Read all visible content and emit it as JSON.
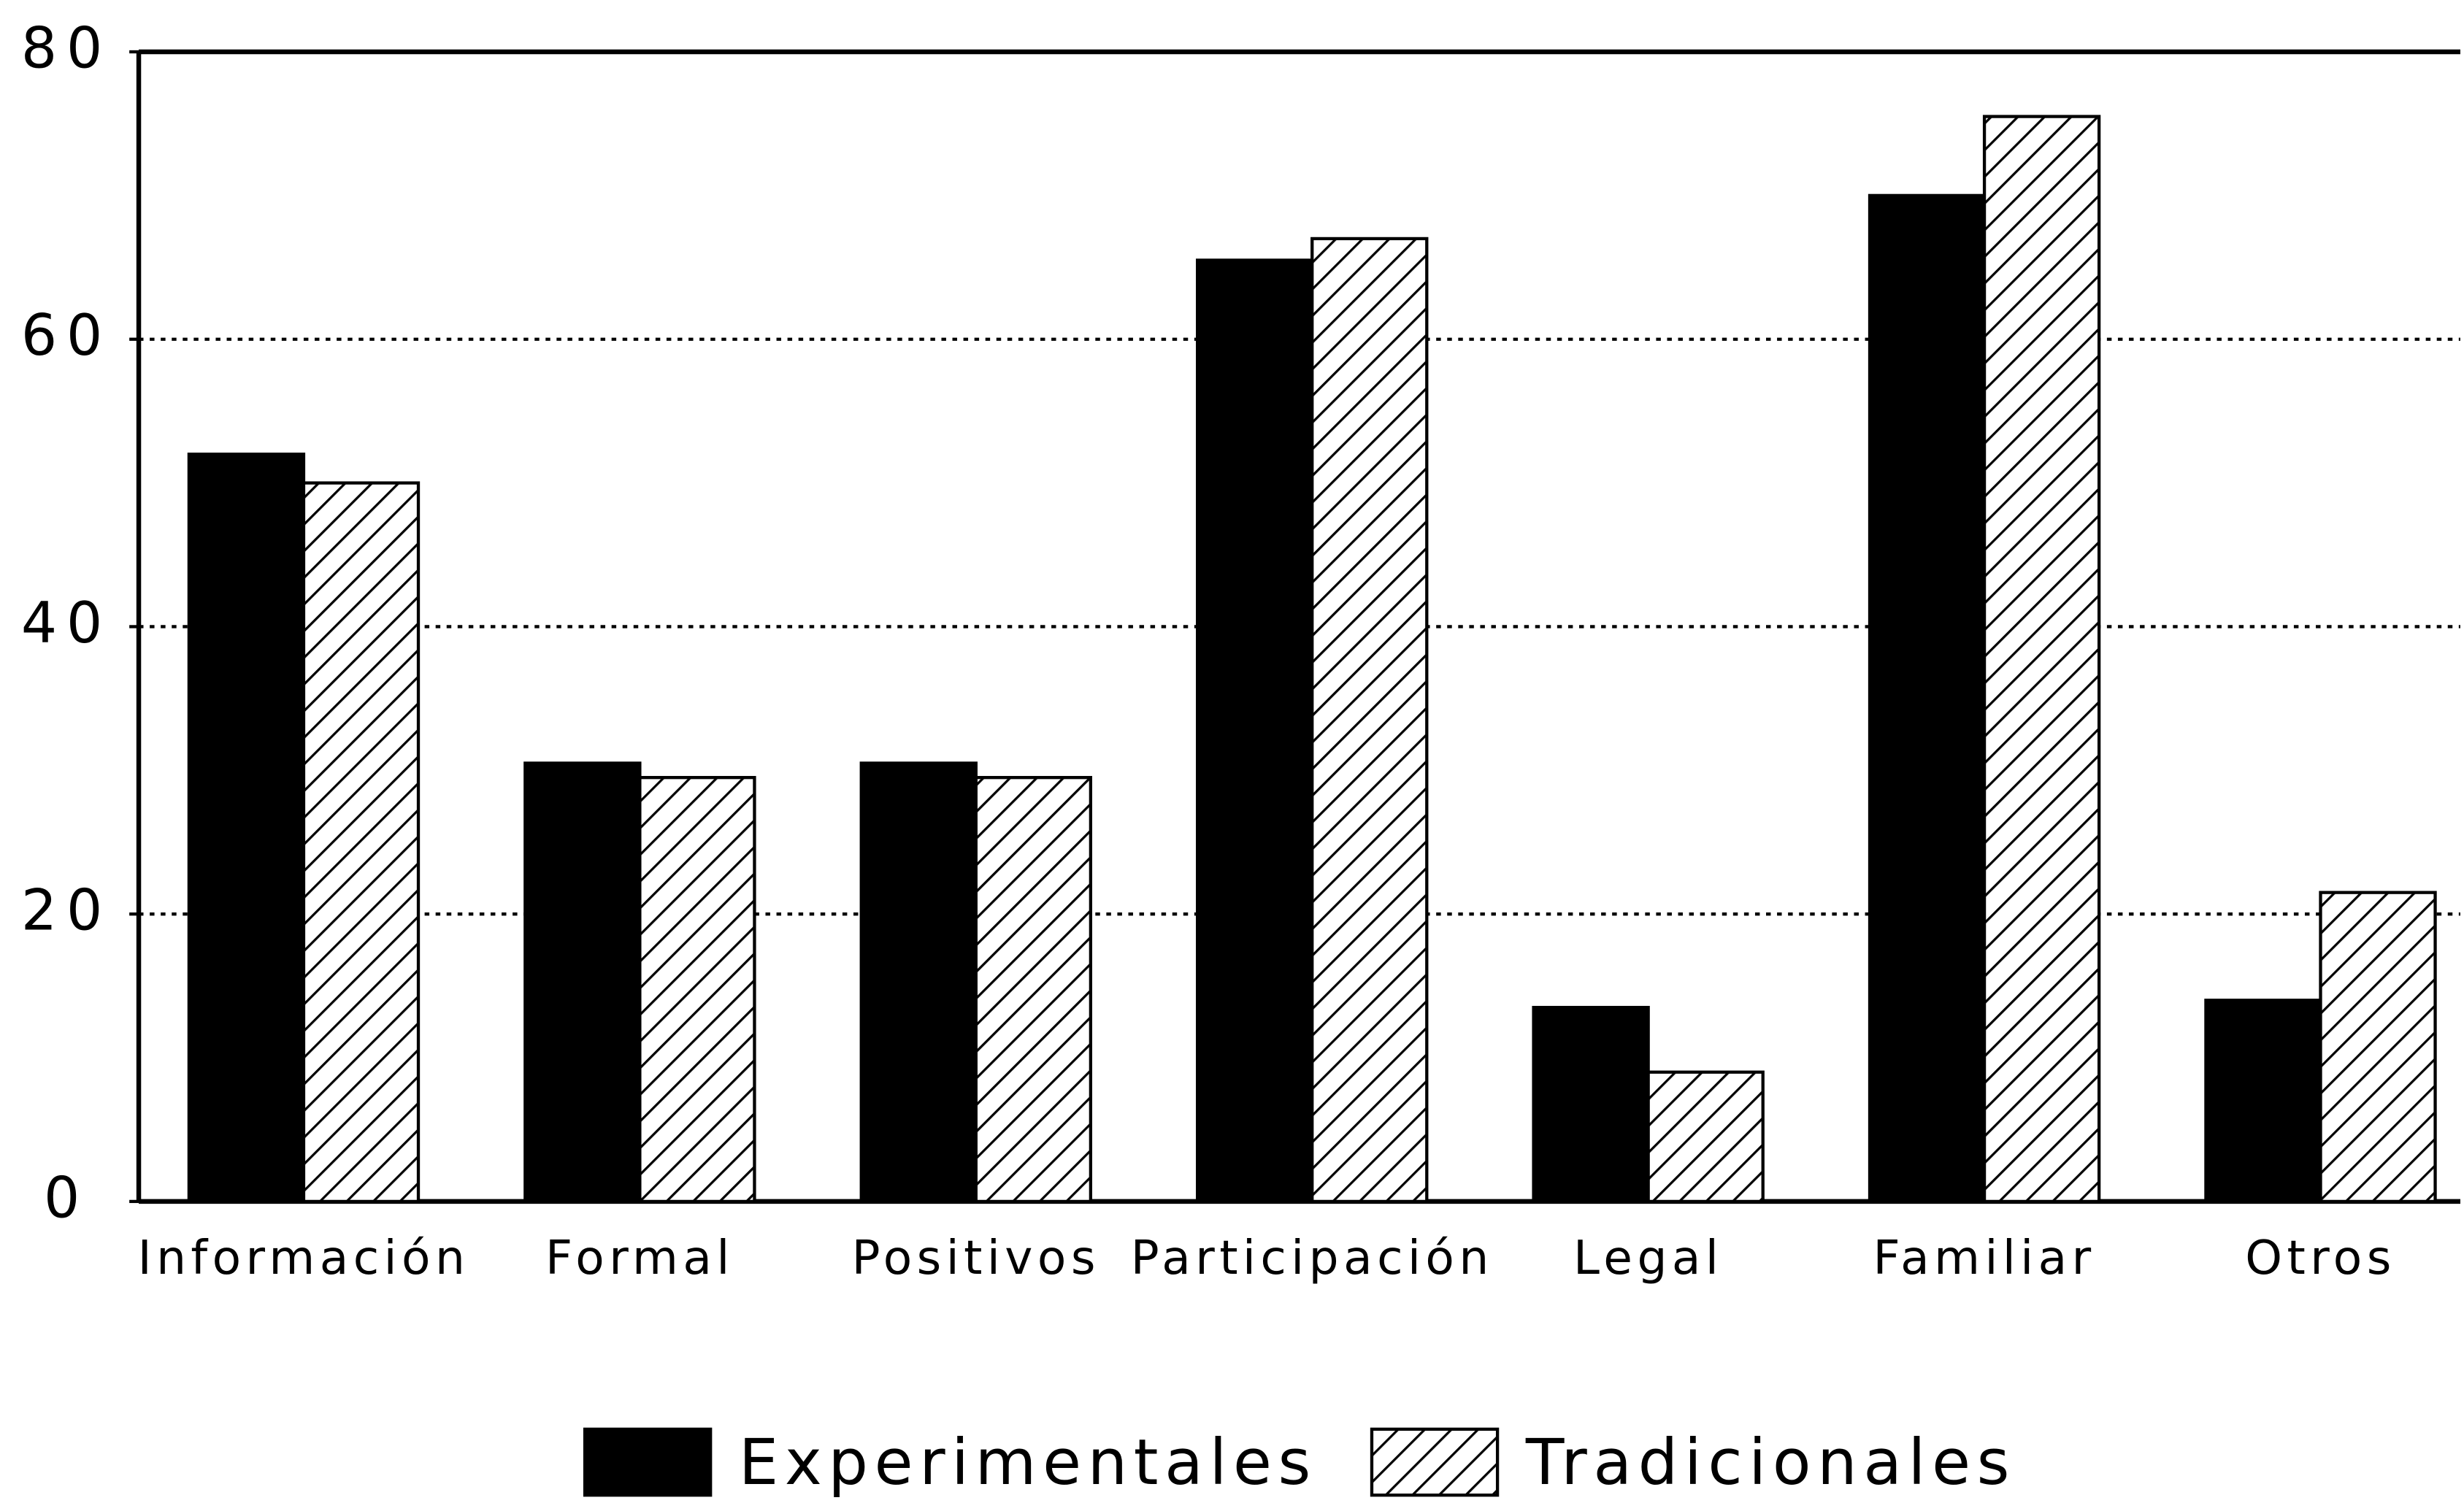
{
  "chart_data": {
    "type": "bar",
    "categories": [
      "Información",
      "Formal",
      "Positivos",
      "Participación",
      "Legal",
      "Familiar",
      "Otros"
    ],
    "series": [
      {
        "name": "Experimentales",
        "color": "#000000",
        "hatch": false,
        "values": [
          52,
          30.5,
          30.5,
          65.5,
          13.5,
          70,
          14
        ]
      },
      {
        "name": "Tradicionales",
        "color": "#000000",
        "hatch": true,
        "values": [
          50,
          29.5,
          29.5,
          67,
          9,
          75.5,
          21.5
        ]
      }
    ],
    "ylim": [
      0,
      80
    ],
    "yticks": [
      0,
      20,
      40,
      60,
      80
    ],
    "grid": true,
    "legend": "bottom"
  }
}
